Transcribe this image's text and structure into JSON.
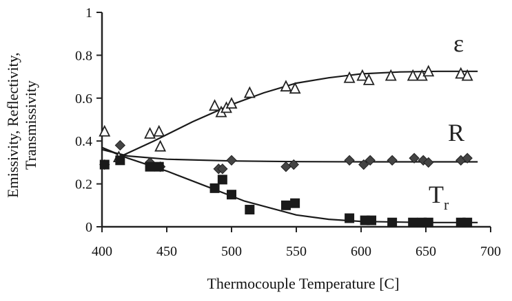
{
  "chart_data": {
    "type": "scatter",
    "xlabel": "Thermocouple Temperature [C]",
    "ylabel_lines": [
      "Emissivity, Reflectivity,",
      "Transmissivity"
    ],
    "xlim": [
      400,
      700
    ],
    "ylim": [
      0,
      1
    ],
    "xticks": [
      400,
      450,
      500,
      550,
      600,
      650,
      700
    ],
    "yticks": [
      0,
      0.2,
      0.4,
      0.6,
      0.8,
      1
    ],
    "ytick_labels": [
      "0",
      "0.2",
      "0.4",
      "0.6",
      "0.8",
      "1"
    ],
    "grid": false,
    "series": [
      {
        "name": "ε",
        "marker": "triangle-open",
        "points": [
          [
            402,
            0.44
          ],
          [
            413,
            0.32
          ],
          [
            437,
            0.43
          ],
          [
            444,
            0.44
          ],
          [
            445,
            0.37
          ],
          [
            487,
            0.56
          ],
          [
            492,
            0.53
          ],
          [
            496,
            0.55
          ],
          [
            500,
            0.57
          ],
          [
            514,
            0.62
          ],
          [
            542,
            0.65
          ],
          [
            549,
            0.64
          ],
          [
            591,
            0.69
          ],
          [
            601,
            0.7
          ],
          [
            606,
            0.68
          ],
          [
            623,
            0.7
          ],
          [
            640,
            0.7
          ],
          [
            647,
            0.7
          ],
          [
            652,
            0.72
          ],
          [
            677,
            0.71
          ],
          [
            682,
            0.7
          ]
        ],
        "fit": [
          [
            400,
            0.37
          ],
          [
            415,
            0.33
          ],
          [
            440,
            0.4
          ],
          [
            470,
            0.49
          ],
          [
            500,
            0.57
          ],
          [
            525,
            0.625
          ],
          [
            550,
            0.67
          ],
          [
            575,
            0.695
          ],
          [
            600,
            0.713
          ],
          [
            630,
            0.722
          ],
          [
            660,
            0.725
          ],
          [
            690,
            0.725
          ]
        ]
      },
      {
        "name": "R",
        "marker": "diamond-filled",
        "points": [
          [
            402,
            0.29
          ],
          [
            414,
            0.38
          ],
          [
            437,
            0.3
          ],
          [
            445,
            0.28
          ],
          [
            490,
            0.27
          ],
          [
            493,
            0.27
          ],
          [
            500,
            0.31
          ],
          [
            542,
            0.28
          ],
          [
            548,
            0.29
          ],
          [
            591,
            0.31
          ],
          [
            602,
            0.29
          ],
          [
            607,
            0.31
          ],
          [
            624,
            0.31
          ],
          [
            641,
            0.32
          ],
          [
            648,
            0.31
          ],
          [
            652,
            0.3
          ],
          [
            677,
            0.31
          ],
          [
            682,
            0.32
          ]
        ],
        "fit": [
          [
            400,
            0.36
          ],
          [
            420,
            0.33
          ],
          [
            450,
            0.315
          ],
          [
            500,
            0.307
          ],
          [
            550,
            0.304
          ],
          [
            600,
            0.303
          ],
          [
            650,
            0.303
          ],
          [
            690,
            0.303
          ]
        ]
      },
      {
        "name": "T",
        "subscript": "r",
        "marker": "square-filled",
        "points": [
          [
            402,
            0.29
          ],
          [
            414,
            0.31
          ],
          [
            437,
            0.28
          ],
          [
            444,
            0.28
          ],
          [
            487,
            0.18
          ],
          [
            493,
            0.22
          ],
          [
            500,
            0.15
          ],
          [
            514,
            0.08
          ],
          [
            542,
            0.1
          ],
          [
            549,
            0.11
          ],
          [
            591,
            0.04
          ],
          [
            603,
            0.03
          ],
          [
            608,
            0.03
          ],
          [
            624,
            0.02
          ],
          [
            640,
            0.02
          ],
          [
            647,
            0.02
          ],
          [
            652,
            0.02
          ],
          [
            677,
            0.02
          ],
          [
            682,
            0.02
          ]
        ],
        "fit": [
          [
            400,
            0.37
          ],
          [
            420,
            0.32
          ],
          [
            450,
            0.26
          ],
          [
            480,
            0.19
          ],
          [
            510,
            0.12
          ],
          [
            550,
            0.055
          ],
          [
            575,
            0.035
          ],
          [
            600,
            0.025
          ],
          [
            650,
            0.02
          ],
          [
            690,
            0.02
          ]
        ]
      }
    ]
  }
}
